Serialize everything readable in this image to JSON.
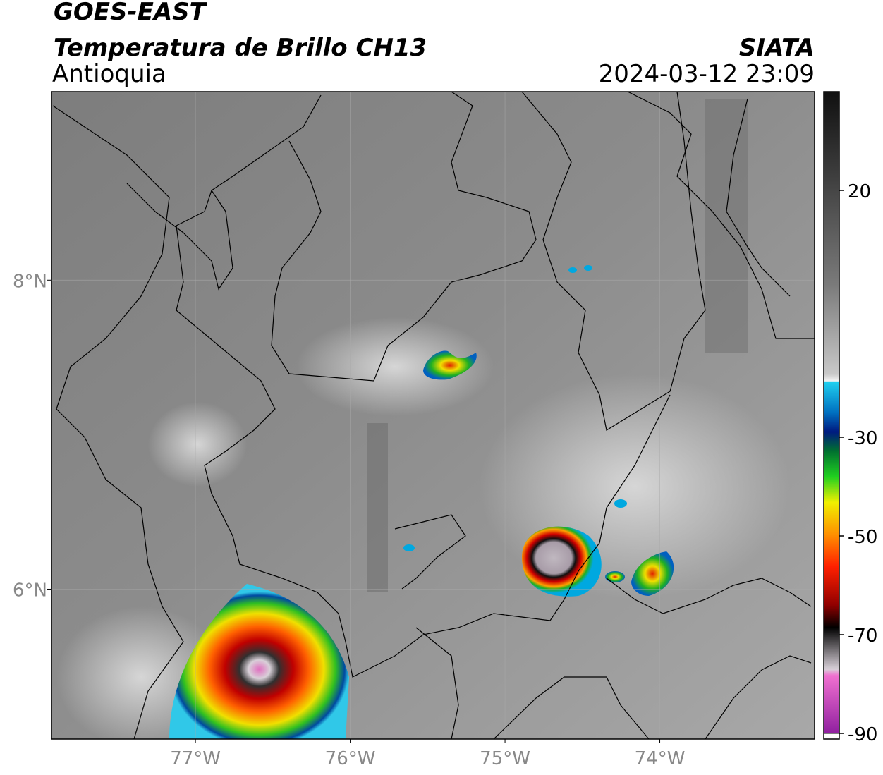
{
  "header": {
    "satellite": "GOES-EAST",
    "product": "Temperatura de Brillo CH13",
    "region": "Antioquia",
    "source": "SIATA",
    "datetime": "2024-03-12 23:09"
  },
  "map": {
    "xlim": [
      -77.93,
      -73.0
    ],
    "ylim": [
      5.03,
      9.22
    ],
    "xticks": [
      {
        "value": -77,
        "label": "77°W"
      },
      {
        "value": -76,
        "label": "76°W"
      },
      {
        "value": -75,
        "label": "75°W"
      },
      {
        "value": -74,
        "label": "74°W"
      }
    ],
    "yticks": [
      {
        "value": 8,
        "label": "8°N"
      },
      {
        "value": 6,
        "label": "6°N"
      }
    ],
    "grid": true
  },
  "colorbar": {
    "lim": [
      -90,
      40
    ],
    "ticks": [
      20,
      -30,
      -50,
      -70,
      -90
    ]
  }
}
